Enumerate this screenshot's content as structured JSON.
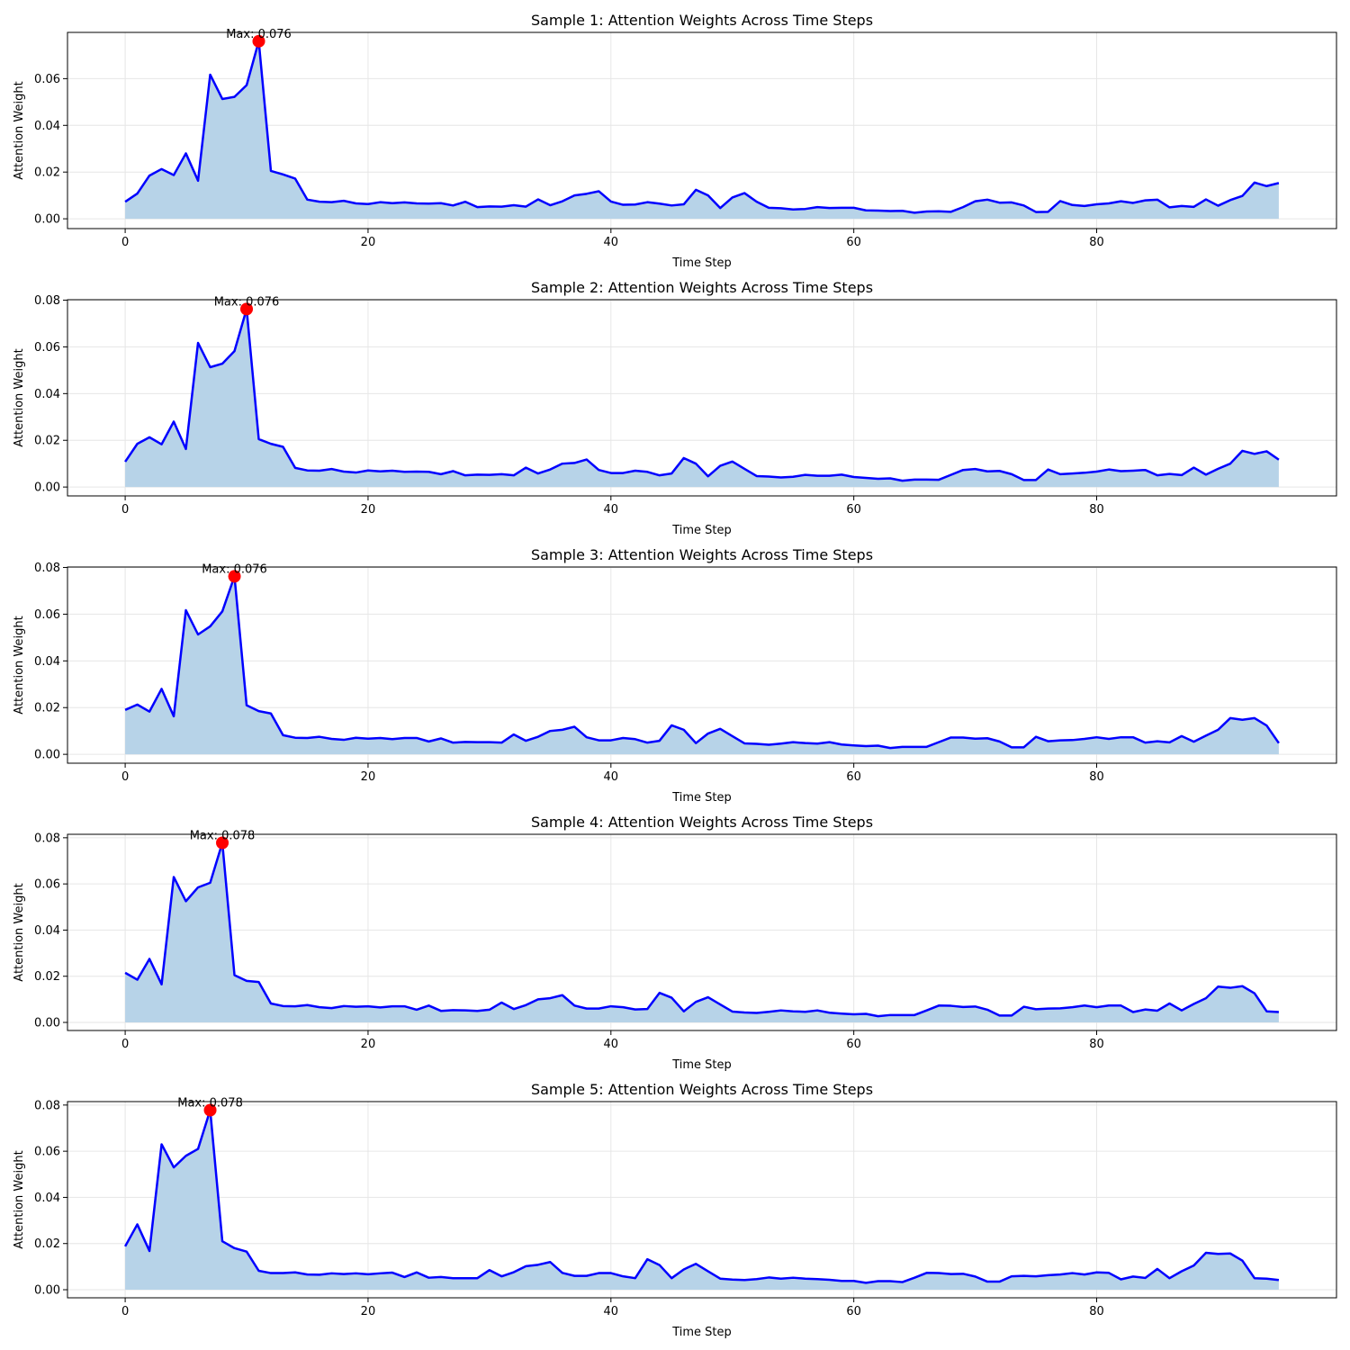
{
  "figure": {
    "xlabel": "Time Step",
    "ylabel": "Attention Weight",
    "line_color": "#0000ff",
    "fill_color": "#b7d3e8",
    "marker_color": "#ff0000"
  },
  "chart_data": [
    {
      "type": "area",
      "title": "Sample 1: Attention Weights Across Time Steps",
      "xlabel": "Time Step",
      "ylabel": "Attention Weight",
      "xlim": [
        -4.75,
        99.75
      ],
      "ylim": [
        -0.0042,
        0.0798
      ],
      "xticks": [
        0,
        20,
        40,
        60,
        80
      ],
      "yticks": [
        0.0,
        0.02,
        0.04,
        0.06
      ],
      "grid": true,
      "max_label": "Max: 0.076",
      "max_index": 11,
      "values": [
        0.0073,
        0.0108,
        0.0185,
        0.0213,
        0.0187,
        0.028,
        0.0163,
        0.0617,
        0.0513,
        0.0522,
        0.0572,
        0.076,
        0.0205,
        0.019,
        0.0172,
        0.0082,
        0.0073,
        0.0071,
        0.0077,
        0.0066,
        0.0063,
        0.0071,
        0.0067,
        0.007,
        0.0066,
        0.0065,
        0.0067,
        0.0057,
        0.0073,
        0.005,
        0.0053,
        0.0052,
        0.0058,
        0.0052,
        0.0083,
        0.0058,
        0.0075,
        0.01,
        0.0107,
        0.0118,
        0.0074,
        0.006,
        0.0061,
        0.0071,
        0.0065,
        0.0057,
        0.0062,
        0.0124,
        0.01,
        0.0046,
        0.0091,
        0.011,
        0.0073,
        0.0047,
        0.0045,
        0.004,
        0.0042,
        0.005,
        0.0046,
        0.0047,
        0.0047,
        0.0036,
        0.0035,
        0.0033,
        0.0034,
        0.0026,
        0.0031,
        0.0032,
        0.003,
        0.005,
        0.0075,
        0.0082,
        0.0069,
        0.007,
        0.0057,
        0.0029,
        0.003,
        0.0076,
        0.0059,
        0.0055,
        0.0062,
        0.0066,
        0.0075,
        0.0068,
        0.0079,
        0.0082,
        0.0049,
        0.0055,
        0.0051,
        0.0083,
        0.0056,
        0.008,
        0.0098,
        0.0155,
        0.014,
        0.0153
      ]
    },
    {
      "type": "area",
      "title": "Sample 2: Attention Weights Across Time Steps",
      "xlabel": "Time Step",
      "ylabel": "Attention Weight",
      "xlim": [
        -4.75,
        99.75
      ],
      "ylim": [
        -0.0038,
        0.0802
      ],
      "xticks": [
        0,
        20,
        40,
        60,
        80
      ],
      "yticks": [
        0.0,
        0.02,
        0.04,
        0.06,
        0.08
      ],
      "grid": true,
      "max_label": "Max: 0.076",
      "max_index": 10,
      "values": [
        0.0108,
        0.0185,
        0.0213,
        0.0183,
        0.028,
        0.0163,
        0.0617,
        0.0513,
        0.0528,
        0.0582,
        0.0762,
        0.0205,
        0.0185,
        0.0172,
        0.0082,
        0.0071,
        0.007,
        0.0077,
        0.0066,
        0.0062,
        0.0071,
        0.0067,
        0.007,
        0.0065,
        0.0066,
        0.0065,
        0.0055,
        0.0068,
        0.005,
        0.0053,
        0.0052,
        0.0055,
        0.005,
        0.0083,
        0.0058,
        0.0075,
        0.01,
        0.0103,
        0.0118,
        0.0073,
        0.006,
        0.006,
        0.007,
        0.0065,
        0.005,
        0.0058,
        0.0124,
        0.01,
        0.0046,
        0.0091,
        0.0109,
        0.0078,
        0.0047,
        0.0045,
        0.0041,
        0.0044,
        0.0052,
        0.0048,
        0.0048,
        0.0053,
        0.0043,
        0.0039,
        0.0035,
        0.0037,
        0.0027,
        0.0032,
        0.0032,
        0.0031,
        0.0052,
        0.0073,
        0.0077,
        0.0067,
        0.0069,
        0.0055,
        0.003,
        0.003,
        0.0075,
        0.0055,
        0.0058,
        0.0061,
        0.0066,
        0.0075,
        0.0068,
        0.007,
        0.0073,
        0.005,
        0.0056,
        0.0051,
        0.0083,
        0.0053,
        0.0078,
        0.01,
        0.0155,
        0.0142,
        0.0153,
        0.0117
      ]
    },
    {
      "type": "area",
      "title": "Sample 3: Attention Weights Across Time Steps",
      "xlabel": "Time Step",
      "ylabel": "Attention Weight",
      "xlim": [
        -4.75,
        99.75
      ],
      "ylim": [
        -0.0038,
        0.0802
      ],
      "xticks": [
        0,
        20,
        40,
        60,
        80
      ],
      "yticks": [
        0.0,
        0.02,
        0.04,
        0.06,
        0.08
      ],
      "grid": true,
      "max_label": "Max: 0.076",
      "max_index": 9,
      "values": [
        0.019,
        0.0213,
        0.0183,
        0.028,
        0.0163,
        0.0617,
        0.0513,
        0.0548,
        0.0612,
        0.0762,
        0.021,
        0.0185,
        0.0175,
        0.0082,
        0.0071,
        0.007,
        0.0075,
        0.0066,
        0.0062,
        0.0071,
        0.0067,
        0.007,
        0.0065,
        0.007,
        0.007,
        0.0055,
        0.0068,
        0.005,
        0.0053,
        0.0052,
        0.0052,
        0.005,
        0.0085,
        0.0058,
        0.0075,
        0.01,
        0.0105,
        0.0118,
        0.0073,
        0.006,
        0.006,
        0.007,
        0.0065,
        0.005,
        0.0058,
        0.0124,
        0.0105,
        0.0048,
        0.0089,
        0.0109,
        0.0078,
        0.0047,
        0.0045,
        0.0041,
        0.0046,
        0.0052,
        0.0048,
        0.0046,
        0.0052,
        0.0042,
        0.0038,
        0.0035,
        0.0037,
        0.0027,
        0.0032,
        0.0032,
        0.0032,
        0.0052,
        0.0072,
        0.0072,
        0.0067,
        0.0069,
        0.0055,
        0.003,
        0.003,
        0.0075,
        0.0056,
        0.006,
        0.0061,
        0.0066,
        0.0073,
        0.0066,
        0.0073,
        0.0073,
        0.005,
        0.0056,
        0.0051,
        0.0078,
        0.0054,
        0.008,
        0.0105,
        0.0155,
        0.0148,
        0.0155,
        0.0123,
        0.0048
      ]
    },
    {
      "type": "area",
      "title": "Sample 4: Attention Weights Across Time Steps",
      "xlabel": "Time Step",
      "ylabel": "Attention Weight",
      "xlim": [
        -4.75,
        99.75
      ],
      "ylim": [
        -0.0035,
        0.0815
      ],
      "xticks": [
        0,
        20,
        40,
        60,
        80
      ],
      "yticks": [
        0.0,
        0.02,
        0.04,
        0.06,
        0.08
      ],
      "grid": true,
      "max_label": "Max: 0.078",
      "max_index": 8,
      "values": [
        0.0215,
        0.0185,
        0.0275,
        0.0165,
        0.063,
        0.0525,
        0.0585,
        0.0605,
        0.0778,
        0.0205,
        0.018,
        0.0175,
        0.0082,
        0.0071,
        0.007,
        0.0075,
        0.0066,
        0.0062,
        0.0071,
        0.0068,
        0.007,
        0.0065,
        0.007,
        0.007,
        0.0055,
        0.0073,
        0.005,
        0.0053,
        0.0052,
        0.005,
        0.0055,
        0.0086,
        0.0058,
        0.0075,
        0.01,
        0.0105,
        0.0118,
        0.0073,
        0.006,
        0.006,
        0.007,
        0.0066,
        0.0056,
        0.0058,
        0.0128,
        0.0107,
        0.0048,
        0.0089,
        0.0109,
        0.0078,
        0.0047,
        0.0043,
        0.0041,
        0.0046,
        0.0052,
        0.0048,
        0.0046,
        0.0052,
        0.0042,
        0.0038,
        0.0035,
        0.0037,
        0.0027,
        0.0032,
        0.0032,
        0.0032,
        0.0052,
        0.0073,
        0.0072,
        0.0067,
        0.0069,
        0.0055,
        0.003,
        0.003,
        0.0068,
        0.0057,
        0.006,
        0.0061,
        0.0066,
        0.0073,
        0.0066,
        0.0073,
        0.0073,
        0.0045,
        0.0056,
        0.0051,
        0.0082,
        0.0052,
        0.008,
        0.0105,
        0.0155,
        0.015,
        0.0157,
        0.0126,
        0.0048,
        0.0045
      ]
    },
    {
      "type": "area",
      "title": "Sample 5: Attention Weights Across Time Steps",
      "xlabel": "Time Step",
      "ylabel": "Attention Weight",
      "xlim": [
        -4.75,
        99.75
      ],
      "ylim": [
        -0.0035,
        0.0815
      ],
      "xticks": [
        0,
        20,
        40,
        60,
        80
      ],
      "yticks": [
        0.0,
        0.02,
        0.04,
        0.06,
        0.08
      ],
      "grid": true,
      "max_label": "Max: 0.078",
      "max_index": 7,
      "values": [
        0.0188,
        0.0283,
        0.0168,
        0.063,
        0.053,
        0.058,
        0.061,
        0.0778,
        0.021,
        0.018,
        0.0165,
        0.0082,
        0.0072,
        0.0072,
        0.0075,
        0.0066,
        0.0065,
        0.0071,
        0.0068,
        0.0071,
        0.0067,
        0.0071,
        0.0074,
        0.0055,
        0.0075,
        0.0052,
        0.0055,
        0.005,
        0.005,
        0.005,
        0.0085,
        0.0058,
        0.0076,
        0.0102,
        0.0108,
        0.012,
        0.0073,
        0.006,
        0.006,
        0.0072,
        0.0072,
        0.0058,
        0.005,
        0.0132,
        0.0107,
        0.005,
        0.0088,
        0.0112,
        0.008,
        0.0048,
        0.0044,
        0.0042,
        0.0046,
        0.0053,
        0.0048,
        0.0052,
        0.0048,
        0.0046,
        0.0043,
        0.0038,
        0.0038,
        0.003,
        0.0037,
        0.0037,
        0.0033,
        0.0052,
        0.0073,
        0.0072,
        0.0068,
        0.0069,
        0.0057,
        0.0035,
        0.0035,
        0.0058,
        0.006,
        0.0058,
        0.0063,
        0.0066,
        0.0072,
        0.0066,
        0.0075,
        0.0073,
        0.0045,
        0.0057,
        0.0051,
        0.009,
        0.005,
        0.008,
        0.0105,
        0.016,
        0.0155,
        0.0157,
        0.0126,
        0.005,
        0.0048,
        0.0042
      ]
    }
  ]
}
